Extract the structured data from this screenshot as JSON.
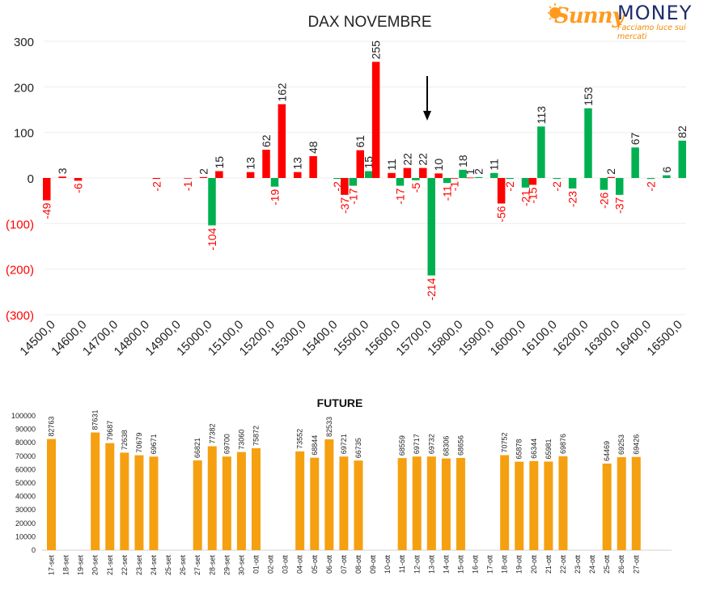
{
  "logo": {
    "sunny_text": "Sunny",
    "money_text": "MONEY",
    "tagline": "Facciamo luce sui mercati",
    "colors": {
      "sunny": "#ff9a1f",
      "money": "#1f2d6e"
    }
  },
  "chart_data": [
    {
      "type": "bar",
      "title": "DAX NOVEMBRE",
      "xlabel": "",
      "ylabel": "",
      "ylim": [
        -300,
        300
      ],
      "y_ticks": [
        {
          "value": 300,
          "label": "300"
        },
        {
          "value": 200,
          "label": "200"
        },
        {
          "value": 100,
          "label": "100"
        },
        {
          "value": 0,
          "label": "0"
        },
        {
          "value": -100,
          "label": "(100)"
        },
        {
          "value": -200,
          "label": "(200)"
        },
        {
          "value": -300,
          "label": "(300)"
        }
      ],
      "x_range": [
        14500,
        16500
      ],
      "x_step": 100,
      "x_tick_labels": [
        "14500,0",
        "14600,0",
        "14700,0",
        "14800,0",
        "14900,0",
        "15000,0",
        "15100,0",
        "15200,0",
        "15300,0",
        "15400,0",
        "15500,0",
        "15600,0",
        "15700,0",
        "15800,0",
        "15900,0",
        "16000,0",
        "16100,0",
        "16200,0",
        "16300,0",
        "16400,0",
        "16500,0"
      ],
      "arrow_at": 15700,
      "grid": true,
      "colors": {
        "red": "#ff0000",
        "green": "#00b050",
        "negative_label": "#ff0000"
      },
      "bars": [
        {
          "x": 14500,
          "value": -49,
          "label": "-49",
          "color": "red"
        },
        {
          "x": 14550,
          "value": 3,
          "label": "3",
          "color": "red"
        },
        {
          "x": 14600,
          "value": -6,
          "label": "-6",
          "color": "red"
        },
        {
          "x": 14850,
          "value": -2,
          "label": "-2",
          "color": "red"
        },
        {
          "x": 14950,
          "value": -1,
          "label": "-1",
          "color": "red"
        },
        {
          "x": 15000,
          "value": 2,
          "label": "2",
          "color": "red"
        },
        {
          "x": 15000,
          "value": -104,
          "label": "-104",
          "color": "green"
        },
        {
          "x": 15050,
          "value": 15,
          "label": "15",
          "color": "red"
        },
        {
          "x": 15150,
          "value": 13,
          "label": "13",
          "color": "red"
        },
        {
          "x": 15200,
          "value": 62,
          "label": "62",
          "color": "red"
        },
        {
          "x": 15200,
          "value": -19,
          "label": "-19",
          "color": "green"
        },
        {
          "x": 15250,
          "value": 162,
          "label": "162",
          "color": "red"
        },
        {
          "x": 15300,
          "value": 13,
          "label": "13",
          "color": "red"
        },
        {
          "x": 15350,
          "value": 48,
          "label": "48",
          "color": "red"
        },
        {
          "x": 15400,
          "value": -2,
          "label": "-2",
          "color": "green"
        },
        {
          "x": 15450,
          "value": -37,
          "label": "-37",
          "color": "red"
        },
        {
          "x": 15450,
          "value": -17,
          "label": "-17",
          "color": "green"
        },
        {
          "x": 15500,
          "value": 61,
          "label": "61",
          "color": "red"
        },
        {
          "x": 15500,
          "value": 15,
          "label": "15",
          "color": "green"
        },
        {
          "x": 15550,
          "value": 255,
          "label": "255",
          "color": "red"
        },
        {
          "x": 15600,
          "value": 11,
          "label": "11",
          "color": "red"
        },
        {
          "x": 15600,
          "value": -17,
          "label": "-17",
          "color": "green"
        },
        {
          "x": 15650,
          "value": 22,
          "label": "22",
          "color": "red"
        },
        {
          "x": 15650,
          "value": -5,
          "label": "-5",
          "color": "green"
        },
        {
          "x": 15700,
          "value": 22,
          "label": "22",
          "color": "red"
        },
        {
          "x": 15700,
          "value": -214,
          "label": "-214",
          "color": "green"
        },
        {
          "x": 15750,
          "value": 10,
          "label": "10",
          "color": "red"
        },
        {
          "x": 15750,
          "value": -11,
          "label": "-11",
          "color": "green"
        },
        {
          "x": 15800,
          "value": -1,
          "label": "-1",
          "color": "red"
        },
        {
          "x": 15800,
          "value": 18,
          "label": "18",
          "color": "green"
        },
        {
          "x": 15850,
          "value": 1,
          "label": "1",
          "color": "red"
        },
        {
          "x": 15850,
          "value": 2,
          "label": "2",
          "color": "green"
        },
        {
          "x": 15900,
          "value": 11,
          "label": "11",
          "color": "green"
        },
        {
          "x": 15950,
          "value": -56,
          "label": "-56",
          "color": "red"
        },
        {
          "x": 15950,
          "value": -2,
          "label": "-2",
          "color": "green"
        },
        {
          "x": 16000,
          "value": -21,
          "label": "-21",
          "color": "green"
        },
        {
          "x": 16050,
          "value": -15,
          "label": "-15",
          "color": "red"
        },
        {
          "x": 16050,
          "value": 113,
          "label": "113",
          "color": "green"
        },
        {
          "x": 16100,
          "value": -2,
          "label": "-2",
          "color": "green"
        },
        {
          "x": 16150,
          "value": -23,
          "label": "-23",
          "color": "green"
        },
        {
          "x": 16200,
          "value": 153,
          "label": "153",
          "color": "green"
        },
        {
          "x": 16250,
          "value": -26,
          "label": "-26",
          "color": "green"
        },
        {
          "x": 16300,
          "value": 2,
          "label": "2",
          "color": "red"
        },
        {
          "x": 16300,
          "value": -37,
          "label": "-37",
          "color": "green"
        },
        {
          "x": 16350,
          "value": 67,
          "label": "67",
          "color": "green"
        },
        {
          "x": 16400,
          "value": -2,
          "label": "-2",
          "color": "green"
        },
        {
          "x": 16450,
          "value": 6,
          "label": "6",
          "color": "green"
        },
        {
          "x": 16500,
          "value": 82,
          "label": "82",
          "color": "green"
        }
      ]
    },
    {
      "type": "bar",
      "title": "FUTURE",
      "xlabel": "",
      "ylabel": "",
      "ylim": [
        0,
        100000
      ],
      "y_ticks": [
        0,
        10000,
        20000,
        30000,
        40000,
        50000,
        60000,
        70000,
        80000,
        90000,
        100000
      ],
      "grid": false,
      "color": "#f5a011",
      "categories": [
        "17-set",
        "18-set",
        "19-set",
        "20-set",
        "21-set",
        "22-set",
        "23-set",
        "24-set",
        "25-set",
        "26-set",
        "27-set",
        "28-set",
        "29-set",
        "30-set",
        "01-ott",
        "02-ott",
        "03-ott",
        "04-ott",
        "05-ott",
        "06-ott",
        "07-ott",
        "08-ott",
        "09-ott",
        "10-ott",
        "11-ott",
        "12-ott",
        "13-ott",
        "14-ott",
        "15-ott",
        "16-ott",
        "17-ott",
        "18-ott",
        "19-ott",
        "20-ott",
        "21-ott",
        "22-ott",
        "23-ott",
        "24-ott",
        "25-ott",
        "26-ott",
        "27-ott"
      ],
      "values": [
        82763,
        null,
        null,
        87631,
        79687,
        72638,
        70679,
        69671,
        null,
        null,
        66821,
        77382,
        69700,
        73060,
        75872,
        null,
        null,
        73552,
        68844,
        82533,
        69721,
        66735,
        null,
        null,
        68559,
        69717,
        69732,
        68306,
        68656,
        null,
        null,
        70752,
        65878,
        66344,
        65981,
        69876,
        null,
        null,
        64469,
        69253,
        69426
      ]
    }
  ]
}
